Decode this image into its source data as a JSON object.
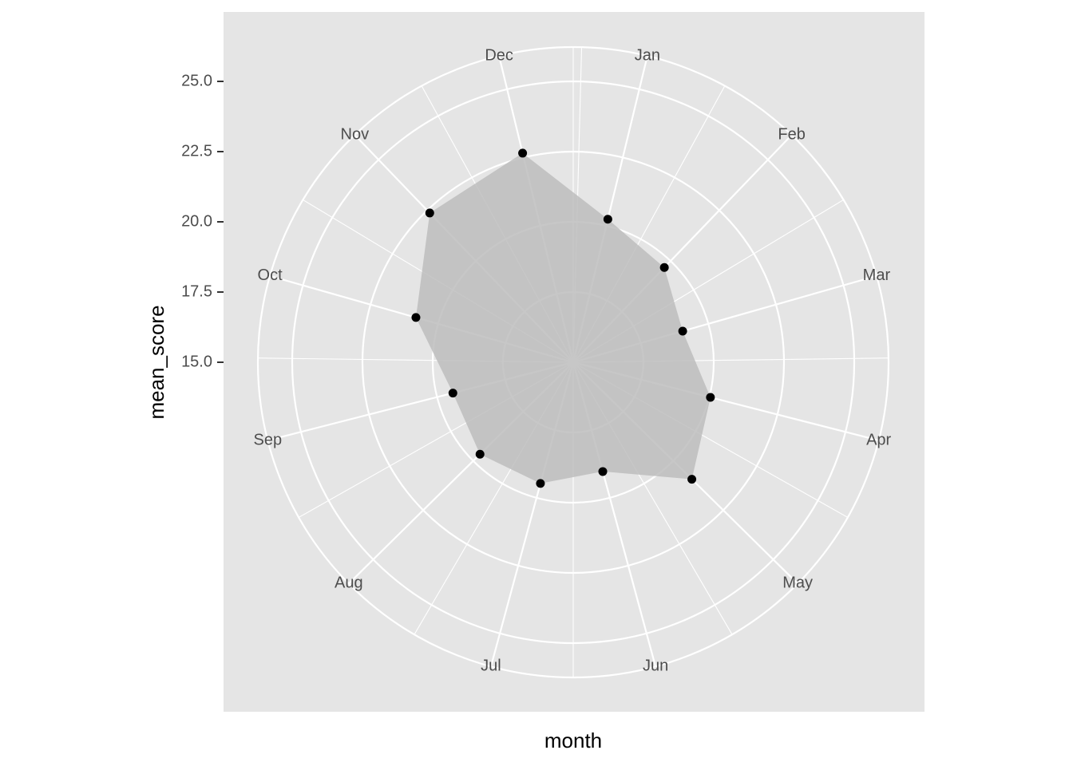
{
  "chart_data": {
    "type": "polar-area",
    "x_label": "month",
    "y_label": "mean_score",
    "categories": [
      "Jan",
      "Feb",
      "Mar",
      "Apr",
      "May",
      "Jun",
      "Jul",
      "Aug",
      "Sep",
      "Oct",
      "Nov",
      "Dec"
    ],
    "values": [
      20.24,
      19.68,
      19.05,
      20.04,
      20.93,
      19.03,
      19.47,
      19.66,
      19.42,
      20.82,
      22.37,
      22.66
    ],
    "ylim": [
      15,
      25
    ],
    "yticks": [
      {
        "value": 15,
        "label": "15.0"
      },
      {
        "value": 17.5,
        "label": "17.5"
      },
      {
        "value": 20,
        "label": "20.0"
      },
      {
        "value": 22.5,
        "label": "22.5"
      },
      {
        "value": 25,
        "label": "25.0"
      }
    ],
    "area_color": "#bdbdbd",
    "point_color": "#000000",
    "grid": true
  }
}
